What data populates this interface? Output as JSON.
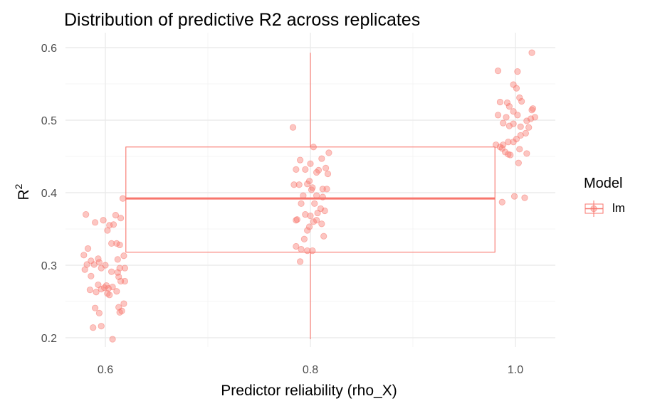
{
  "chart_data": {
    "type": "scatter",
    "title": "Distribution of predictive R2 across replicates",
    "xlabel": "Predictor reliability (rho_X)",
    "ylabel": "R",
    "ylabel_superscript": "2",
    "x_ticks": [
      "0.6",
      "0.8",
      "1.0"
    ],
    "y_ticks": [
      "0.2",
      "0.3",
      "0.4",
      "0.5",
      "0.6"
    ],
    "xlim": [
      0.56,
      1.04
    ],
    "ylim": [
      0.19,
      0.61
    ],
    "grid": true,
    "legend": {
      "title": "Model",
      "entries": [
        "lm"
      ],
      "placement": "right"
    },
    "colors": {
      "series": "#f8766d",
      "grid": "#ebebeb"
    },
    "boxplot": {
      "x_span": [
        0.62,
        0.98
      ],
      "median": 0.392,
      "q1": 0.318,
      "q3": 0.463,
      "whisker_x": 0.8,
      "whisker_low": 0.198,
      "whisker_high": 0.593
    },
    "series": [
      {
        "name": "lm",
        "groups": [
          {
            "x": 0.6,
            "points": [
              [
                0.581,
                0.37
              ],
              [
                0.59,
                0.359
              ],
              [
                0.598,
                0.362
              ],
              [
                0.604,
                0.355
              ],
              [
                0.61,
                0.369
              ],
              [
                0.615,
                0.365
              ],
              [
                0.608,
                0.356
              ],
              [
                0.602,
                0.348
              ],
              [
                0.617,
                0.392
              ],
              [
                0.583,
                0.323
              ],
              [
                0.579,
                0.314
              ],
              [
                0.586,
                0.306
              ],
              [
                0.593,
                0.309
              ],
              [
                0.611,
                0.33
              ],
              [
                0.614,
                0.328
              ],
              [
                0.618,
                0.313
              ],
              [
                0.612,
                0.308
              ],
              [
                0.606,
                0.33
              ],
              [
                0.582,
                0.301
              ],
              [
                0.58,
                0.294
              ],
              [
                0.589,
                0.301
              ],
              [
                0.594,
                0.304
              ],
              [
                0.596,
                0.296
              ],
              [
                0.6,
                0.3
              ],
              [
                0.614,
                0.296
              ],
              [
                0.619,
                0.296
              ],
              [
                0.612,
                0.29
              ],
              [
                0.613,
                0.284
              ],
              [
                0.606,
                0.291
              ],
              [
                0.586,
                0.285
              ],
              [
                0.593,
                0.273
              ],
              [
                0.599,
                0.269
              ],
              [
                0.601,
                0.272
              ],
              [
                0.603,
                0.268
              ],
              [
                0.607,
                0.27
              ],
              [
                0.615,
                0.278
              ],
              [
                0.619,
                0.278
              ],
              [
                0.585,
                0.266
              ],
              [
                0.591,
                0.263
              ],
              [
                0.596,
                0.267
              ],
              [
                0.602,
                0.261
              ],
              [
                0.604,
                0.259
              ],
              [
                0.611,
                0.264
              ],
              [
                0.618,
                0.247
              ],
              [
                0.613,
                0.242
              ],
              [
                0.616,
                0.237
              ],
              [
                0.614,
                0.235
              ],
              [
                0.59,
                0.241
              ],
              [
                0.594,
                0.234
              ],
              [
                0.588,
                0.214
              ],
              [
                0.596,
                0.216
              ],
              [
                0.607,
                0.198
              ]
            ]
          },
          {
            "x": 0.8,
            "points": [
              [
                0.783,
                0.49
              ],
              [
                0.803,
                0.463
              ],
              [
                0.811,
                0.447
              ],
              [
                0.818,
                0.455
              ],
              [
                0.8,
                0.44
              ],
              [
                0.79,
                0.445
              ],
              [
                0.795,
                0.432
              ],
              [
                0.786,
                0.432
              ],
              [
                0.808,
                0.431
              ],
              [
                0.815,
                0.434
              ],
              [
                0.817,
                0.426
              ],
              [
                0.806,
                0.428
              ],
              [
                0.799,
                0.416
              ],
              [
                0.784,
                0.411
              ],
              [
                0.789,
                0.411
              ],
              [
                0.797,
                0.412
              ],
              [
                0.802,
                0.407
              ],
              [
                0.812,
                0.405
              ],
              [
                0.816,
                0.405
              ],
              [
                0.793,
                0.396
              ],
              [
                0.806,
                0.396
              ],
              [
                0.801,
                0.404
              ],
              [
                0.791,
                0.385
              ],
              [
                0.804,
                0.385
              ],
              [
                0.812,
                0.394
              ],
              [
                0.81,
                0.378
              ],
              [
                0.814,
                0.375
              ],
              [
                0.807,
                0.372
              ],
              [
                0.8,
                0.368
              ],
              [
                0.795,
                0.37
              ],
              [
                0.787,
                0.363
              ],
              [
                0.786,
                0.362
              ],
              [
                0.803,
                0.36
              ],
              [
                0.806,
                0.362
              ],
              [
                0.811,
                0.357
              ],
              [
                0.813,
                0.34
              ],
              [
                0.797,
                0.348
              ],
              [
                0.799,
                0.353
              ],
              [
                0.794,
                0.336
              ],
              [
                0.786,
                0.326
              ],
              [
                0.791,
                0.322
              ],
              [
                0.797,
                0.32
              ],
              [
                0.802,
                0.32
              ],
              [
                0.79,
                0.305
              ]
            ]
          },
          {
            "x": 1.0,
            "points": [
              [
                1.016,
                0.593
              ],
              [
                0.983,
                0.568
              ],
              [
                1.002,
                0.567
              ],
              [
                0.998,
                0.549
              ],
              [
                1.001,
                0.544
              ],
              [
                1.004,
                0.531
              ],
              [
                0.985,
                0.525
              ],
              [
                0.992,
                0.524
              ],
              [
                0.994,
                0.519
              ],
              [
                1.006,
                0.526
              ],
              [
                0.998,
                0.512
              ],
              [
                1.002,
                0.507
              ],
              [
                1.017,
                0.516
              ],
              [
                1.016,
                0.514
              ],
              [
                0.983,
                0.507
              ],
              [
                0.991,
                0.504
              ],
              [
                0.998,
                0.495
              ],
              [
                1.011,
                0.499
              ],
              [
                1.015,
                0.502
              ],
              [
                1.019,
                0.504
              ],
              [
                0.988,
                0.496
              ],
              [
                0.994,
                0.492
              ],
              [
                1.005,
                0.491
              ],
              [
                1.013,
                0.49
              ],
              [
                1.01,
                0.482
              ],
              [
                1.005,
                0.479
              ],
              [
                1.001,
                0.474
              ],
              [
                0.998,
                0.47
              ],
              [
                0.993,
                0.47
              ],
              [
                0.988,
                0.466
              ],
              [
                0.981,
                0.466
              ],
              [
                0.985,
                0.463
              ],
              [
                0.987,
                0.461
              ],
              [
                0.99,
                0.456
              ],
              [
                0.993,
                0.453
              ],
              [
                0.995,
                0.452
              ],
              [
                1.004,
                0.46
              ],
              [
                1.011,
                0.454
              ],
              [
                1.003,
                0.441
              ],
              [
                0.999,
                0.395
              ],
              [
                1.009,
                0.393
              ],
              [
                0.987,
                0.387
              ]
            ]
          }
        ]
      }
    ]
  }
}
